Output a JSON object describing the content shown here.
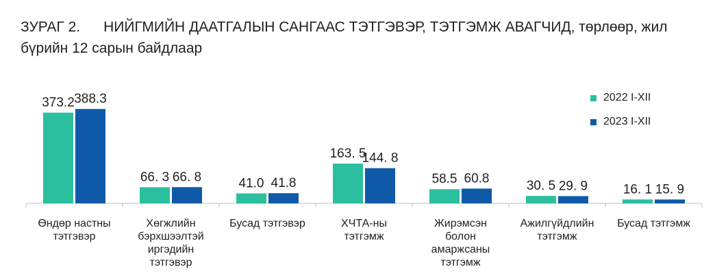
{
  "title": {
    "label": "ЗУРАГ 2.",
    "line1": "НИЙГМИЙН ДААТГАЛЫН САНГААС ТЭТГЭВЭР, ТЭТГЭМЖ АВАГЧИД, төрлөөр, жил",
    "line2": "бүрийн 12 сарын байдлаар"
  },
  "colors": {
    "series_2022": "#2bbf9f",
    "series_2023": "#0f5aa8",
    "axis": "#bdbdbd",
    "text": "#1f1f1f"
  },
  "chart_data": {
    "type": "bar",
    "categories": [
      [
        "Өндөр настны",
        "тэтгэвэр"
      ],
      [
        "Хөгжлийн",
        "бэрхшээлтэй",
        "иргэдийн",
        "тэтгэвэр"
      ],
      [
        "Бусад тэтгэвэр"
      ],
      [
        "ХЧТА-ны",
        "тэтгэмж"
      ],
      [
        "Жирэмсэн",
        "болон",
        "амаржсаны",
        "тэтгэмж"
      ],
      [
        "Ажилгүйдлийн",
        "тэтгэмж"
      ],
      [
        "Бусад тэтгэмж"
      ]
    ],
    "series": [
      {
        "name": "2022 I-XII",
        "values": [
          373.2,
          66.3,
          41.0,
          163.5,
          58.5,
          30.5,
          16.1
        ],
        "labels": [
          "373.2",
          "66. 3",
          "41.0",
          "163. 5",
          "58.5",
          "30. 5",
          "16. 1"
        ]
      },
      {
        "name": "2023 I-XII",
        "values": [
          388.3,
          66.8,
          41.8,
          144.8,
          60.8,
          29.9,
          15.9
        ],
        "labels": [
          "388.3",
          "66. 8",
          "41.8",
          "144. 8",
          "60.8",
          "29. 9",
          "15. 9"
        ]
      }
    ],
    "ylim": [
      0,
      400
    ],
    "legend": "top-right",
    "grid": false
  }
}
